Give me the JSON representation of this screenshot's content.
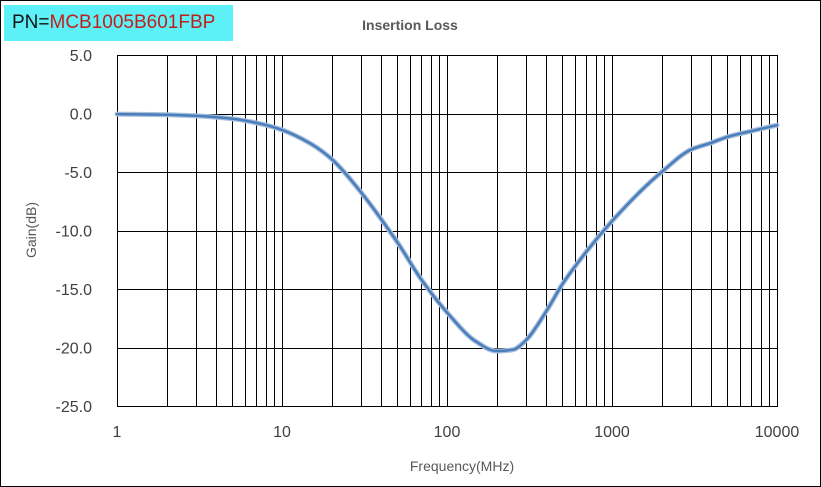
{
  "part_number": {
    "prefix": "PN=",
    "value": "MCB1005B601FBP",
    "background": "#5ef0f7",
    "value_color": "#c0201c"
  },
  "chart_data": {
    "type": "line",
    "title": "Insertion Loss",
    "xlabel": "Frequency(MHz)",
    "ylabel": "Gain(dB)",
    "x_scale": "log",
    "xlim": [
      1,
      10000
    ],
    "ylim": [
      -25,
      5
    ],
    "x_ticks": [
      "1",
      "10",
      "100",
      "1000",
      "10000"
    ],
    "y_ticks": [
      "5.0",
      "0.0",
      "-5.0",
      "-10.0",
      "-15.0",
      "-20.0",
      "-25.0"
    ],
    "grid": true,
    "line_color": "#4a7ebb",
    "series": [
      {
        "x": [
          1,
          2,
          3,
          5,
          7,
          10,
          15,
          20,
          30,
          50,
          70,
          100,
          150,
          200,
          250,
          300,
          400,
          500,
          700,
          1000,
          1500,
          2000,
          3000,
          4000,
          5000,
          7000,
          10000
        ],
        "y": [
          -0.05,
          -0.1,
          -0.2,
          -0.45,
          -0.8,
          -1.4,
          -2.6,
          -3.9,
          -6.7,
          -11.0,
          -14.2,
          -17.0,
          -19.5,
          -20.3,
          -20.2,
          -19.4,
          -16.9,
          -14.6,
          -11.8,
          -9.2,
          -6.6,
          -5.0,
          -3.1,
          -2.5,
          -2.0,
          -1.5,
          -1.0
        ]
      }
    ]
  }
}
